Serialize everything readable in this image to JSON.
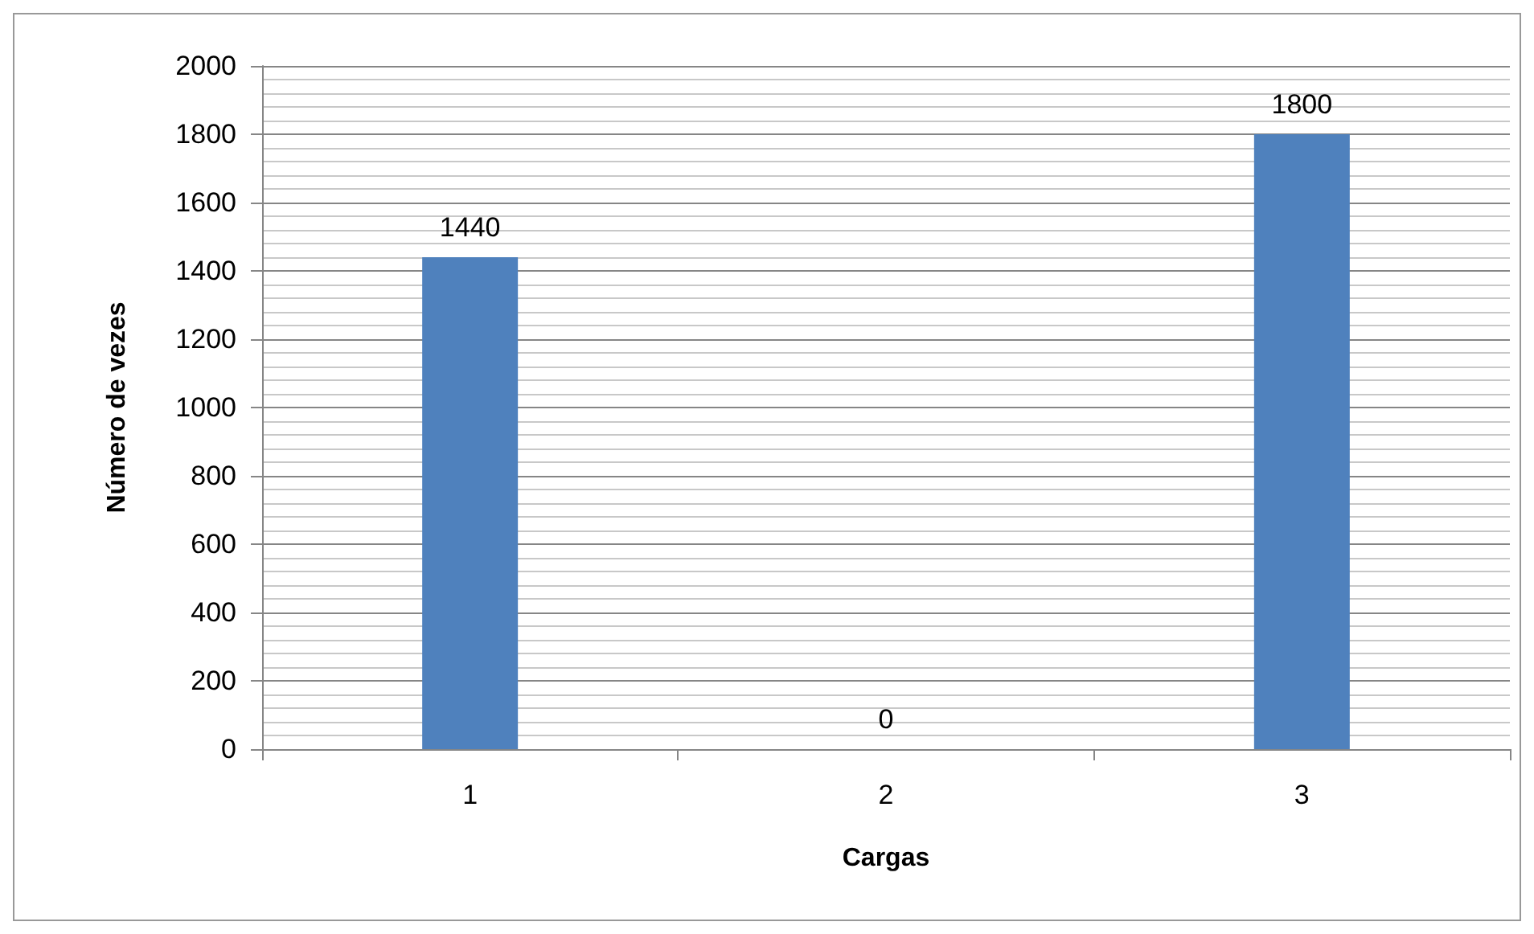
{
  "chart_data": {
    "type": "bar",
    "xlabel": "Cargas",
    "ylabel": "Número de vezes",
    "categories": [
      "1",
      "2",
      "3"
    ],
    "values": [
      1440,
      0,
      1800
    ],
    "color": "#4f81bd",
    "ylim": [
      0,
      2000
    ],
    "yticks": [
      0,
      200,
      400,
      600,
      800,
      1000,
      1200,
      1400,
      1600,
      1800,
      2000
    ],
    "grid": "y",
    "data_labels": true
  }
}
